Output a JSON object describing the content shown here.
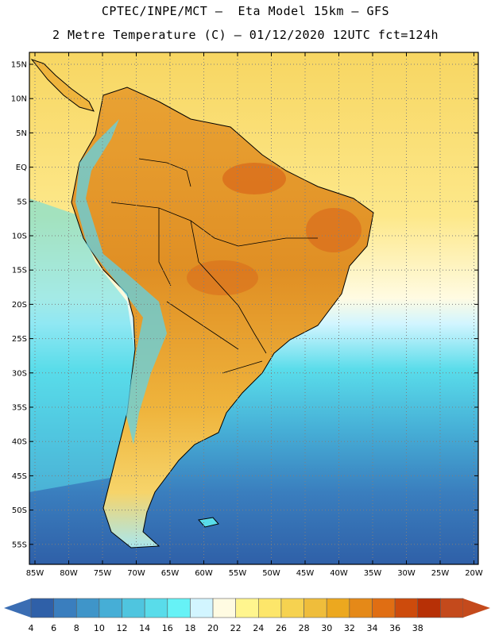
{
  "header": {
    "line1": "CPTEC/INPE/MCT –  Eta Model 15km – GFS",
    "line2": "2 Metre Temperature (C) – 01/12/2020 12UTC fct=124h"
  },
  "map": {
    "lat_labels": [
      "15N",
      "10N",
      "5N",
      "EQ",
      "5S",
      "10S",
      "15S",
      "20S",
      "25S",
      "30S",
      "35S",
      "40S",
      "45S",
      "50S",
      "55S"
    ],
    "lon_labels": [
      "85W",
      "80W",
      "75W",
      "70W",
      "65W",
      "60W",
      "55W",
      "50W",
      "45W",
      "40W",
      "35W",
      "30W",
      "25W",
      "20W"
    ]
  },
  "colorbar": {
    "labels": [
      "4",
      "6",
      "8",
      "10",
      "12",
      "14",
      "16",
      "18",
      "20",
      "22",
      "24",
      "26",
      "28",
      "30",
      "32",
      "34",
      "36",
      "38"
    ],
    "colors": [
      "#2f60a8",
      "#3a7ebe",
      "#3f95c9",
      "#46aed6",
      "#4fc5df",
      "#59dcea",
      "#66f2f6",
      "#d2f5ff",
      "#fffbe2",
      "#fff58e",
      "#fde66a",
      "#f6d250",
      "#efbd3b",
      "#eca81f",
      "#e58918",
      "#e06e13",
      "#cd4b0c",
      "#b73006",
      "#c44a1c"
    ],
    "low_color": "#3a6db3",
    "high_color": "#c44a1c"
  }
}
